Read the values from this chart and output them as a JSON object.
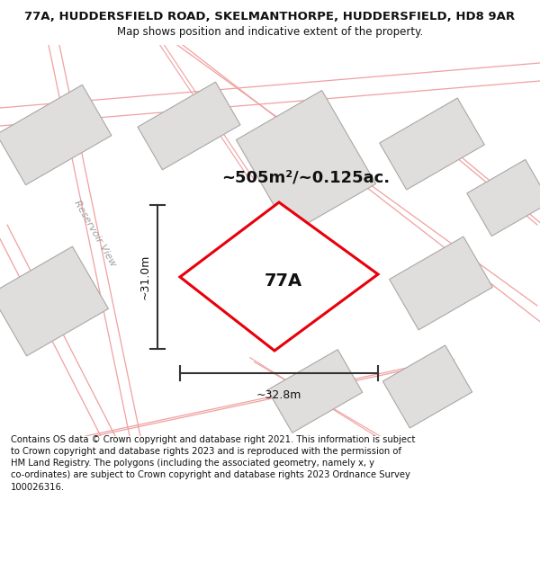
{
  "title": "77A, HUDDERSFIELD ROAD, SKELMANTHORPE, HUDDERSFIELD, HD8 9AR",
  "subtitle": "Map shows position and indicative extent of the property.",
  "footer": "Contains OS data © Crown copyright and database right 2021. This information is subject\nto Crown copyright and database rights 2023 and is reproduced with the permission of\nHM Land Registry. The polygons (including the associated geometry, namely x, y\nco-ordinates) are subject to Crown copyright and database rights 2023 Ordnance Survey\n100026316.",
  "area_label": "~505m²/~0.125ac.",
  "label_77a": "77A",
  "dim_height": "~31.0m",
  "dim_width": "~32.8m",
  "street_label": "Reservoir View",
  "bg_color": "#ffffff",
  "map_bg": "#f9f8f7",
  "plot_color_red": "#e8000a",
  "building_fill": "#e0dedd",
  "building_edge": "#aaa8a5",
  "road_line_color": "#f0a0a0",
  "dim_color": "#333333",
  "title_fontsize": 9.5,
  "subtitle_fontsize": 8.5,
  "footer_fontsize": 7.2,
  "label_fontsize": 14,
  "area_fontsize": 13,
  "dim_fontsize": 9,
  "street_fontsize": 8
}
